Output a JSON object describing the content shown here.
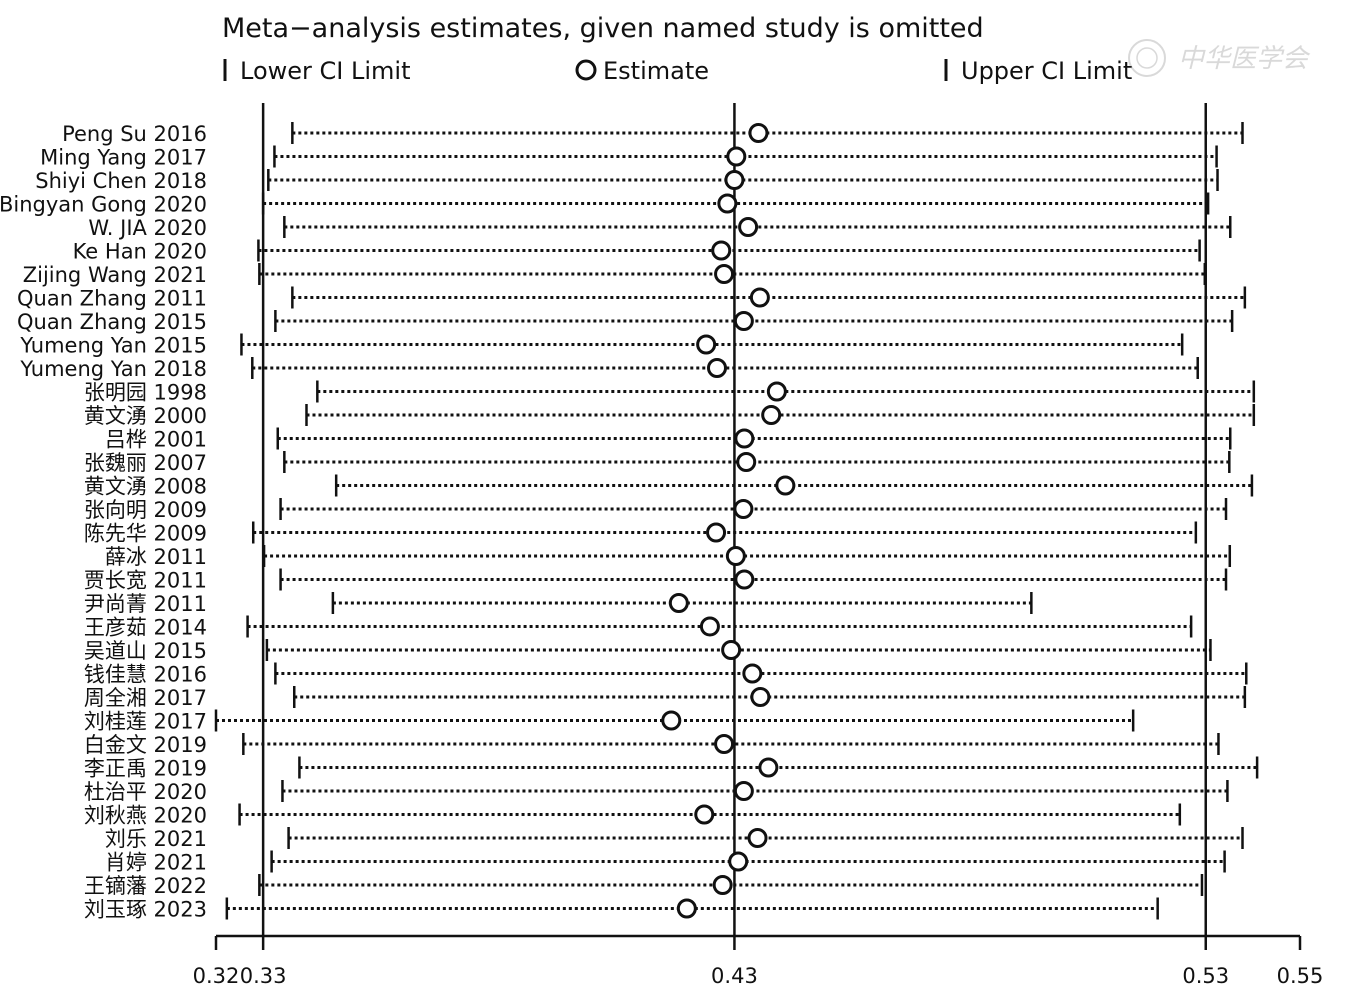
{
  "chart_data": {
    "type": "sensitivity-forest",
    "title": "Meta−analysis estimates, given named study is omitted",
    "legend": {
      "lower": "Lower CI Limit",
      "estimate": "Estimate",
      "upper": "Upper CI Limit"
    },
    "xlim": [
      0.32,
      0.55
    ],
    "ticks": [
      {
        "value": 0.32,
        "label": "0.32"
      },
      {
        "value": 0.33,
        "label": "0.33"
      },
      {
        "value": 0.43,
        "label": "0.43"
      },
      {
        "value": 0.53,
        "label": "0.53"
      },
      {
        "value": 0.55,
        "label": "0.55"
      }
    ],
    "reference_lines": [
      0.33,
      0.43,
      0.53
    ],
    "studies": [
      {
        "name": "Peng Su 2016",
        "lower": 0.3362,
        "estimate": 0.4351,
        "upper": 0.5378
      },
      {
        "name": "Ming Yang 2017",
        "lower": 0.3324,
        "estimate": 0.4304,
        "upper": 0.5323
      },
      {
        "name": "Shiyi Chen 2018",
        "lower": 0.3311,
        "estimate": 0.43,
        "upper": 0.5325
      },
      {
        "name": "Bingyan Gong 2020",
        "lower": 0.33,
        "estimate": 0.4285,
        "upper": 0.5305
      },
      {
        "name": "W. JIA 2020",
        "lower": 0.3345,
        "estimate": 0.4329,
        "upper": 0.5352
      },
      {
        "name": "Ke Han 2020",
        "lower": 0.329,
        "estimate": 0.4272,
        "upper": 0.5287
      },
      {
        "name": "Zijing Wang 2021",
        "lower": 0.3292,
        "estimate": 0.4278,
        "upper": 0.5298
      },
      {
        "name": "Quan Zhang 2011",
        "lower": 0.3362,
        "estimate": 0.4354,
        "upper": 0.5383
      },
      {
        "name": "Quan Zhang 2015",
        "lower": 0.3326,
        "estimate": 0.432,
        "upper": 0.5356
      },
      {
        "name": "Yumeng Yan 2015",
        "lower": 0.3254,
        "estimate": 0.424,
        "upper": 0.525
      },
      {
        "name": "Yumeng Yan 2018",
        "lower": 0.3277,
        "estimate": 0.4263,
        "upper": 0.5283
      },
      {
        "name": "张明园 1998",
        "lower": 0.3415,
        "estimate": 0.439,
        "upper": 0.5402
      },
      {
        "name": "黄文湧 2000",
        "lower": 0.3392,
        "estimate": 0.4378,
        "upper": 0.5402
      },
      {
        "name": "吕桦 2001",
        "lower": 0.3331,
        "estimate": 0.4321,
        "upper": 0.5352
      },
      {
        "name": "张魏丽 2007",
        "lower": 0.3345,
        "estimate": 0.4325,
        "upper": 0.535
      },
      {
        "name": "黄文湧 2008",
        "lower": 0.3455,
        "estimate": 0.4408,
        "upper": 0.5398
      },
      {
        "name": "张向明 2009",
        "lower": 0.3337,
        "estimate": 0.4319,
        "upper": 0.5343
      },
      {
        "name": "陈先华 2009",
        "lower": 0.3279,
        "estimate": 0.4261,
        "upper": 0.5279
      },
      {
        "name": "薛冰 2011",
        "lower": 0.3302,
        "estimate": 0.4303,
        "upper": 0.5351
      },
      {
        "name": "贾长宽 2011",
        "lower": 0.3337,
        "estimate": 0.4321,
        "upper": 0.5343
      },
      {
        "name": "尹尚菁 2011",
        "lower": 0.3448,
        "estimate": 0.4182,
        "upper": 0.493
      },
      {
        "name": "王彦茹 2014",
        "lower": 0.3267,
        "estimate": 0.4248,
        "upper": 0.5269
      },
      {
        "name": "吴道山 2015",
        "lower": 0.3308,
        "estimate": 0.4293,
        "upper": 0.531
      },
      {
        "name": "钱佳慧 2016",
        "lower": 0.3326,
        "estimate": 0.4338,
        "upper": 0.5386
      },
      {
        "name": "周全湘 2017",
        "lower": 0.3366,
        "estimate": 0.4355,
        "upper": 0.5383
      },
      {
        "name": "刘桂莲 2017",
        "lower": 0.32,
        "estimate": 0.4166,
        "upper": 0.5146
      },
      {
        "name": "白金文 2019",
        "lower": 0.3258,
        "estimate": 0.4278,
        "upper": 0.5327
      },
      {
        "name": "李正禹 2019",
        "lower": 0.3377,
        "estimate": 0.4372,
        "upper": 0.5409
      },
      {
        "name": "杜治平 2020",
        "lower": 0.3341,
        "estimate": 0.432,
        "upper": 0.5346
      },
      {
        "name": "刘秋燕 2020",
        "lower": 0.325,
        "estimate": 0.4236,
        "upper": 0.5245
      },
      {
        "name": "刘乐 2021",
        "lower": 0.3354,
        "estimate": 0.4349,
        "upper": 0.5378
      },
      {
        "name": "肖婷 2021",
        "lower": 0.3318,
        "estimate": 0.4308,
        "upper": 0.534
      },
      {
        "name": "王镝藩 2022",
        "lower": 0.3292,
        "estimate": 0.4275,
        "upper": 0.5292
      },
      {
        "name": "刘玉琢 2023",
        "lower": 0.3223,
        "estimate": 0.4199,
        "upper": 0.5198
      }
    ]
  },
  "watermark": {
    "text": "中华医学会",
    "icon": "society-seal-icon"
  }
}
